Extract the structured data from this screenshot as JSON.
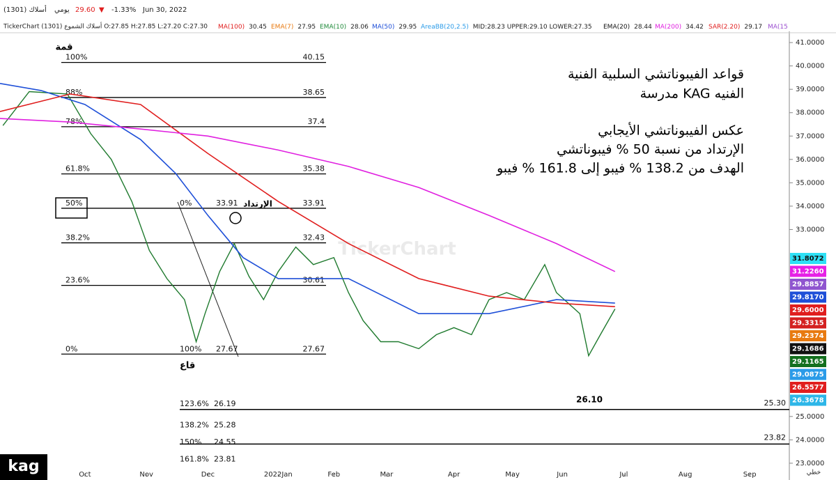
{
  "chart_data": {
    "type": "line",
    "header": {
      "name": "(1301) أسلاك",
      "period": "يومي",
      "last": "29.60",
      "arrow": "▼",
      "change": "-1.33%",
      "date": "Jun 30, 2022"
    },
    "ohlc_line": "TickerChart أسلاك الشموع (1301) O:27.85 H:27.85 L:27.20 C:27.30",
    "indicators": [
      {
        "name": "MA(100)",
        "value": 30.45,
        "color": "#e01e1e"
      },
      {
        "name": "EMA(7)",
        "value": 27.95,
        "color": "#e87a10"
      },
      {
        "name": "EMA(10)",
        "value": 28.06,
        "color": "#1f8a3a"
      },
      {
        "name": "MA(50)",
        "value": 29.95,
        "color": "#1e4fd8"
      },
      {
        "name": "AreaBB(20,2.5)",
        "value": "MID:28.23   UPPER:29.10   LOWER:27.35",
        "color": "#2a9be8"
      },
      {
        "name": "EMA(20)",
        "value": 28.44,
        "color": "#111111"
      },
      {
        "name": "MA(200)",
        "value": 34.42,
        "color": "#e020e0"
      },
      {
        "name": "SAR(2.20)",
        "value": 29.17,
        "color": "#e01e1e"
      },
      {
        "name": "MA(15",
        "color": "#9b4fd0"
      }
    ],
    "watermark": "TickerChart",
    "notes": [
      "قواعد الفيبوناتشي السلبية الفنية",
      "مدرسة KAG الفنيه",
      "عكس الفيبوناتشي الأيجابي",
      "الإرتداد من نسبة 50 % فيبوناتشي",
      "الهدف من 138.2 % فيبو إلى 161.8 % فيبو"
    ],
    "top_label": "قمة",
    "bottom_label": "قاع",
    "bounce_label": "الإرتداد",
    "low_label": "26.10",
    "brand": "kag",
    "chart_mode": "خطي",
    "xlim": [
      0,
      270
    ],
    "ylim": [
      22.55,
      41.48
    ],
    "xticks": [
      {
        "value": 29,
        "label": "Oct"
      },
      {
        "value": 50,
        "label": "Nov"
      },
      {
        "value": 71,
        "label": "Dec"
      },
      {
        "value": 95,
        "label": "2022Jan"
      },
      {
        "value": 114,
        "label": "Feb"
      },
      {
        "value": 132,
        "label": "Mar"
      },
      {
        "value": 155,
        "label": "Apr"
      },
      {
        "value": 175,
        "label": "May"
      },
      {
        "value": 192,
        "label": "Jun"
      },
      {
        "value": 213,
        "label": "Jul"
      },
      {
        "value": 234,
        "label": "Aug"
      },
      {
        "value": 256,
        "label": "Sep"
      }
    ],
    "yticks": [
      {
        "value": 41,
        "label": "41.0000"
      },
      {
        "value": 40,
        "label": "40.0000"
      },
      {
        "value": 39,
        "label": "39.0000"
      },
      {
        "value": 38,
        "label": "38.0000"
      },
      {
        "value": 37,
        "label": "37.0000"
      },
      {
        "value": 36,
        "label": "36.0000"
      },
      {
        "value": 35,
        "label": "35.0000"
      },
      {
        "value": 34,
        "label": "34.0000"
      },
      {
        "value": 33,
        "label": "33.0000"
      },
      {
        "value": 25,
        "label": "25.0000"
      },
      {
        "value": 24,
        "label": "24.0000"
      },
      {
        "value": 23,
        "label": "23.0000"
      }
    ],
    "series": [
      {
        "name": "Close",
        "color": "#1f7a2e",
        "x": [
          1,
          10,
          23,
          31,
          38,
          45,
          51,
          57,
          63,
          67,
          70,
          75,
          80,
          85,
          90,
          95,
          101,
          107,
          114,
          119,
          124,
          130,
          136,
          143,
          149,
          155,
          161,
          167,
          173,
          179,
          186,
          190,
          198,
          201,
          205,
          210
        ],
        "values": [
          37.45,
          38.9,
          38.8,
          37.1,
          36,
          34.2,
          32.1,
          30.9,
          30,
          28.2,
          29.4,
          31.2,
          32.4,
          31,
          30,
          31.2,
          32.25,
          31.5,
          31.8,
          30.3,
          29.1,
          28.2,
          28.2,
          27.9,
          28.5,
          28.8,
          28.5,
          30,
          30.3,
          30,
          31.5,
          30.3,
          29.4,
          27.6,
          28.5,
          29.6
        ]
      },
      {
        "name": "MA(50)",
        "color": "#1e4fd8",
        "x": [
          0,
          14,
          29,
          48,
          60,
          71,
          83,
          95,
          119,
          143,
          167,
          190,
          210
        ],
        "values": [
          39.25,
          38.95,
          38.35,
          36.85,
          35.4,
          33.6,
          31.8,
          30.9,
          30.9,
          29.4,
          29.4,
          30,
          29.85
        ]
      },
      {
        "name": "MA(100)",
        "color": "#e01e1e",
        "x": [
          0,
          24,
          48,
          71,
          95,
          119,
          143,
          167,
          190,
          210
        ],
        "values": [
          38.05,
          38.8,
          38.35,
          36.25,
          34.2,
          32.4,
          30.9,
          30.15,
          29.85,
          29.7
        ]
      },
      {
        "name": "MA(200)",
        "color": "#e020e0",
        "x": [
          0,
          24,
          48,
          71,
          95,
          119,
          143,
          167,
          190,
          210
        ],
        "values": [
          37.75,
          37.6,
          37.3,
          37,
          36.4,
          35.7,
          34.8,
          33.6,
          32.4,
          31.2
        ]
      }
    ],
    "fib_retracement": [
      {
        "label": "100%",
        "value": 40.15
      },
      {
        "label": "88%",
        "value": 38.65
      },
      {
        "label": "78%",
        "value": 37.4
      },
      {
        "label": "61.8%",
        "value": 35.38
      },
      {
        "label": "50%",
        "value": 33.91
      },
      {
        "label": "38.2%",
        "value": 32.43
      },
      {
        "label": "23.6%",
        "value": 30.61
      },
      {
        "label": "0%",
        "value": 27.67
      }
    ],
    "fib_extension": [
      {
        "label": "0%",
        "value": 33.91
      },
      {
        "label": "100%",
        "value": 27.67
      },
      {
        "label": "123.6%",
        "value": 26.19
      },
      {
        "label": "138.2%",
        "value": 25.28
      },
      {
        "label": "150%",
        "value": 24.55
      },
      {
        "label": "161.8%",
        "value": 23.81
      }
    ],
    "targets": [
      {
        "value": 25.3,
        "label": "25.30"
      },
      {
        "value": 23.82,
        "label": "23.82"
      }
    ],
    "price_labels": [
      {
        "label": "31.8072",
        "color": "#2ee0f5",
        "text_color": "#111111"
      },
      {
        "label": "31.2260",
        "color": "#e620e6",
        "text_color": "#ffffff"
      },
      {
        "label": "29.8857",
        "color": "#8f55cf",
        "text_color": "#ffffff"
      },
      {
        "label": "29.8170",
        "color": "#1e4fd8",
        "text_color": "#ffffff"
      },
      {
        "label": "29.6000",
        "color": "#e01e1e",
        "text_color": "#ffffff"
      },
      {
        "label": "29.3315",
        "color": "#d42020",
        "text_color": "#ffffff"
      },
      {
        "label": "29.2374",
        "color": "#e87a10",
        "text_color": "#ffffff"
      },
      {
        "label": "29.1686",
        "color": "#111111",
        "text_color": "#ffffff"
      },
      {
        "label": "29.1165",
        "color": "#14701f",
        "text_color": "#ffffff"
      },
      {
        "label": "29.0875",
        "color": "#2a9be8",
        "text_color": "#ffffff"
      },
      {
        "label": "26.5577",
        "color": "#e01e1e",
        "text_color": "#ffffff"
      },
      {
        "label": "26.3678",
        "color": "#2db6e8",
        "text_color": "#ffffff"
      }
    ]
  }
}
